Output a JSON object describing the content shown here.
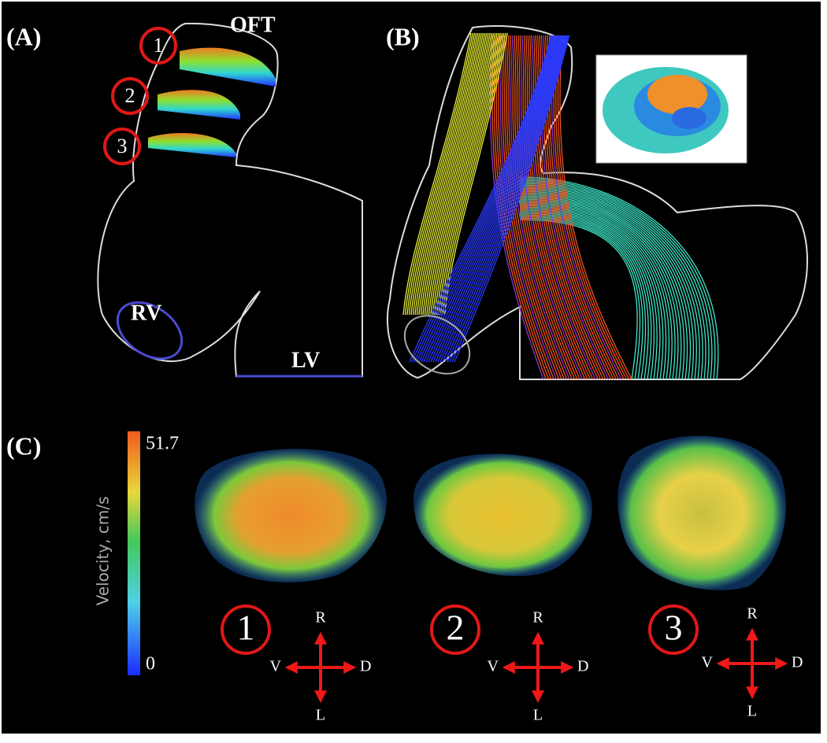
{
  "panels": [
    {
      "label": "(A)",
      "annotations": {
        "outflow": "OFT",
        "right_ventricle": "RV",
        "left_ventricle": "LV"
      },
      "planes": [
        "1",
        "2",
        "3"
      ]
    },
    {
      "label": "(B)"
    },
    {
      "label": "(C)",
      "colorbar": {
        "title": "Velocity, cm/s",
        "max": 51.7,
        "min": 0
      },
      "sections": [
        {
          "number": "1",
          "axes": {
            "top": "R",
            "left": "V",
            "right": "D",
            "bottom": "L"
          }
        },
        {
          "number": "2",
          "axes": {
            "top": "R",
            "left": "V",
            "right": "D",
            "bottom": "L"
          }
        },
        {
          "number": "3",
          "axes": {
            "top": "R",
            "left": "V",
            "right": "D",
            "bottom": "L"
          }
        }
      ]
    }
  ]
}
